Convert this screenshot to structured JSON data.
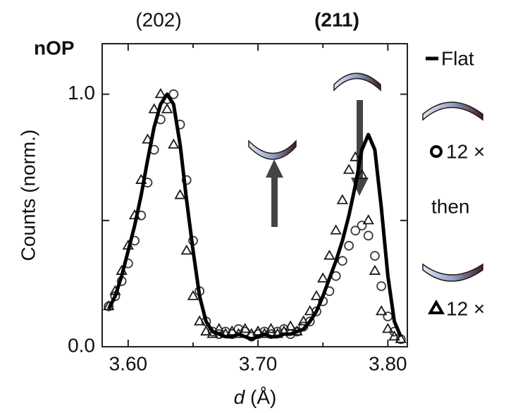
{
  "chart_data": {
    "type": "line",
    "panel_label": "nOP",
    "peak_labels": [
      "(202)",
      "(211)"
    ],
    "peak_label_colors": [
      "#111111",
      "#7b7bbd"
    ],
    "y_label": "Counts (norm.)",
    "x_label_symbol": "d",
    "x_label_unit": "(Å)",
    "legend_note": "then",
    "xlim": [
      3.58,
      3.815
    ],
    "ylim": [
      0,
      1.2
    ],
    "xticks": [
      {
        "value": 3.6,
        "label": "3.60"
      },
      {
        "value": 3.7,
        "label": "3.70"
      },
      {
        "value": 3.8,
        "label": "3.80"
      }
    ],
    "minor_xticks": [
      3.65,
      3.75
    ],
    "yticks": [
      {
        "value": 0,
        "label": "0.0"
      },
      {
        "value": 1,
        "label": "1.0"
      }
    ],
    "minor_yticks": [
      0.5
    ],
    "x": [
      3.585,
      3.59,
      3.595,
      3.6,
      3.605,
      3.61,
      3.615,
      3.62,
      3.625,
      3.63,
      3.635,
      3.64,
      3.645,
      3.65,
      3.655,
      3.66,
      3.665,
      3.67,
      3.675,
      3.68,
      3.685,
      3.69,
      3.695,
      3.7,
      3.705,
      3.71,
      3.715,
      3.72,
      3.725,
      3.73,
      3.735,
      3.74,
      3.745,
      3.75,
      3.755,
      3.76,
      3.765,
      3.77,
      3.775,
      3.78,
      3.785,
      3.79,
      3.795,
      3.8,
      3.805,
      3.81
    ],
    "series": [
      {
        "name": "Flat",
        "color": "#000000",
        "marker": "none",
        "values": [
          0.15,
          0.2,
          0.28,
          0.38,
          0.48,
          0.6,
          0.74,
          0.87,
          0.96,
          1.0,
          0.96,
          0.8,
          0.58,
          0.38,
          0.2,
          0.1,
          0.06,
          0.05,
          0.04,
          0.04,
          0.05,
          0.04,
          0.03,
          0.04,
          0.05,
          0.04,
          0.04,
          0.05,
          0.05,
          0.06,
          0.07,
          0.1,
          0.14,
          0.2,
          0.27,
          0.34,
          0.42,
          0.52,
          0.64,
          0.78,
          0.84,
          0.78,
          0.55,
          0.28,
          0.1,
          0.04
        ]
      },
      {
        "name": "12 ×",
        "color": "#3a3a3a",
        "marker": "circle",
        "values": [
          0.16,
          0.2,
          0.26,
          0.33,
          0.42,
          0.52,
          0.65,
          0.78,
          0.9,
          0.98,
          1.0,
          0.88,
          0.66,
          0.42,
          0.22,
          0.1,
          0.06,
          0.05,
          0.06,
          0.05,
          0.07,
          0.06,
          0.04,
          0.05,
          0.06,
          0.05,
          0.06,
          0.07,
          0.05,
          0.06,
          0.08,
          0.1,
          0.14,
          0.18,
          0.22,
          0.28,
          0.34,
          0.4,
          0.46,
          0.48,
          0.44,
          0.36,
          0.24,
          0.12,
          0.06,
          0.03
        ]
      },
      {
        "name": "12 ×",
        "color": "#1a1a1a",
        "marker": "triangle",
        "values": [
          0.16,
          0.22,
          0.3,
          0.4,
          0.52,
          0.66,
          0.82,
          0.94,
          1.0,
          0.94,
          0.8,
          0.6,
          0.38,
          0.2,
          0.1,
          0.06,
          0.05,
          0.07,
          0.05,
          0.06,
          0.05,
          0.07,
          0.05,
          0.06,
          0.05,
          0.07,
          0.05,
          0.06,
          0.08,
          0.06,
          0.1,
          0.14,
          0.2,
          0.27,
          0.36,
          0.46,
          0.58,
          0.7,
          0.75,
          0.68,
          0.5,
          0.3,
          0.14,
          0.07,
          0.04,
          0.03
        ]
      }
    ]
  }
}
